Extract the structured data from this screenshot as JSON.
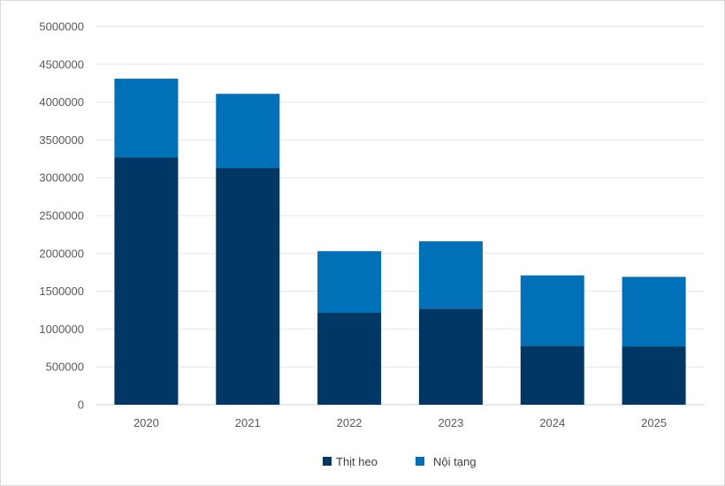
{
  "chart_data": {
    "type": "bar",
    "stacked": true,
    "title": "",
    "xlabel": "",
    "ylabel": "",
    "categories": [
      "2020",
      "2021",
      "2022",
      "2023",
      "2024",
      "2025"
    ],
    "series": [
      {
        "name": "Thịt heo",
        "color": "#003764",
        "values": [
          3270000,
          3130000,
          1215000,
          1270000,
          780000,
          770000
        ]
      },
      {
        "name": "Nội tạng",
        "color": "#0070B8",
        "values": [
          1040000,
          980000,
          815000,
          890000,
          930000,
          920000
        ]
      }
    ],
    "ylim": [
      0,
      5000000
    ],
    "yticks": [
      0,
      500000,
      1000000,
      1500000,
      2000000,
      2500000,
      3000000,
      3500000,
      4000000,
      4500000,
      5000000
    ],
    "grid": true,
    "legend_position": "bottom"
  }
}
